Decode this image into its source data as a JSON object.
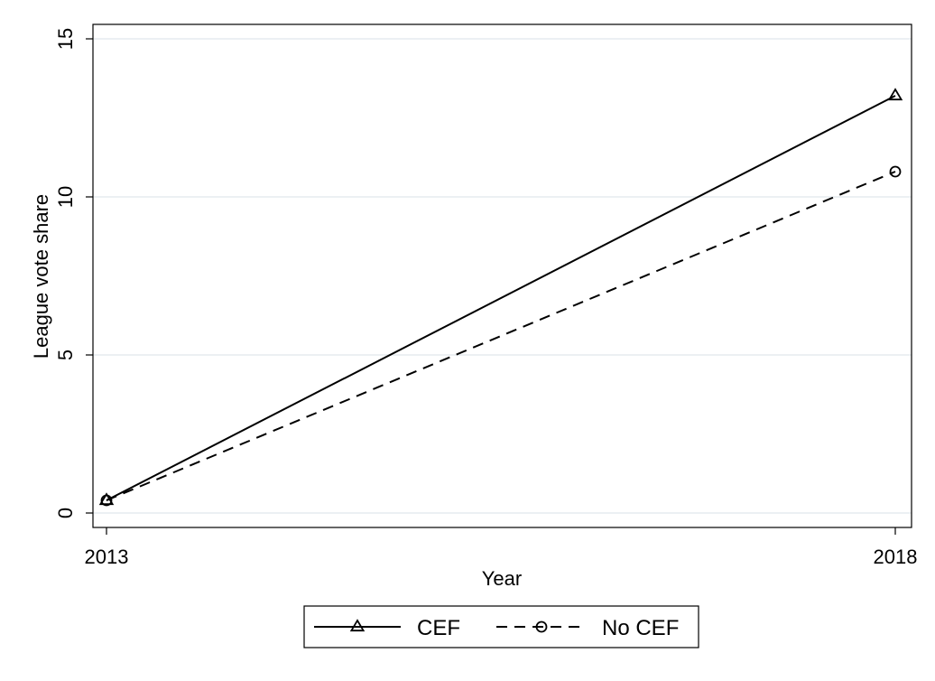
{
  "chart_data": {
    "type": "line",
    "x": [
      2013,
      2018
    ],
    "xticks": [
      "2013",
      "2018"
    ],
    "xlabel": "Year",
    "ylabel": "League vote share",
    "ylim": [
      0,
      15
    ],
    "yticks": [
      0,
      5,
      10,
      15
    ],
    "grid": true,
    "legend_position": "bottom",
    "series": [
      {
        "name": "CEF",
        "values": [
          0.4,
          13.2
        ],
        "style": "solid",
        "marker": "triangle",
        "color": "#000000"
      },
      {
        "name": "No CEF",
        "values": [
          0.4,
          10.8
        ],
        "style": "dashed",
        "marker": "circle",
        "color": "#000000"
      }
    ]
  }
}
